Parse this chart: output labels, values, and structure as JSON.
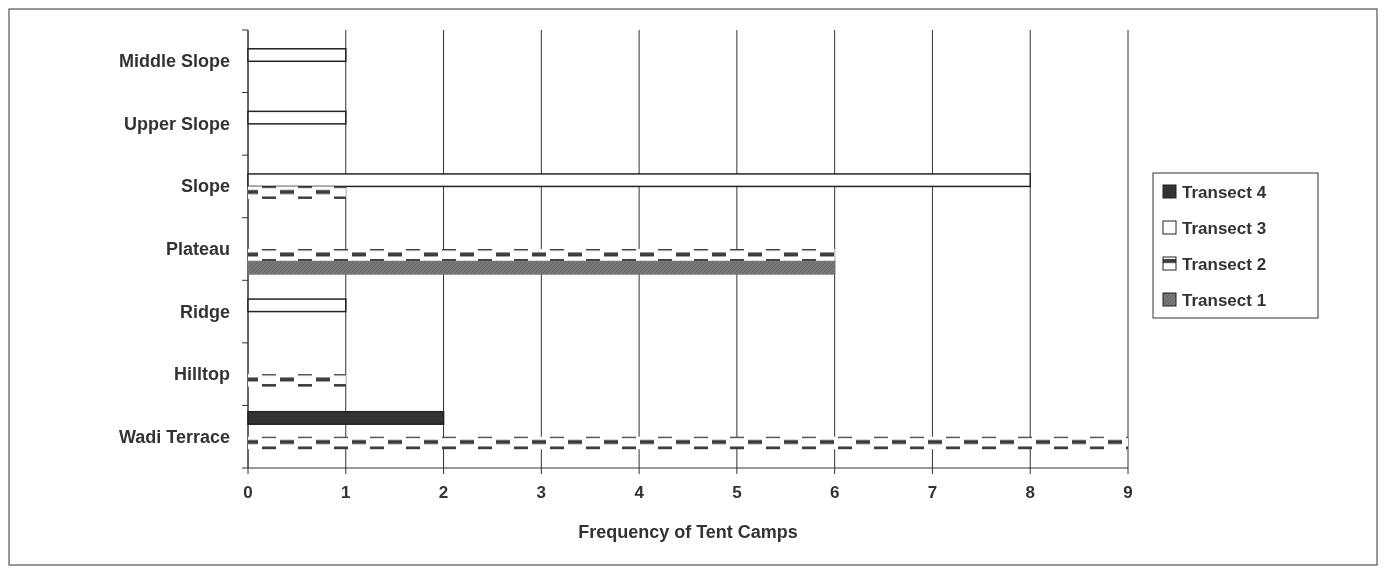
{
  "chart_data": {
    "type": "bar",
    "orientation": "horizontal",
    "xlabel": "Frequency of Tent Camps",
    "categories": [
      "Middle Slope",
      "Upper Slope",
      "Slope",
      "Plateau",
      "Ridge",
      "Hilltop",
      "Wadi Terrace"
    ],
    "series": [
      {
        "name": "Transect 4",
        "color": "#333333",
        "values": [
          null,
          null,
          null,
          null,
          null,
          null,
          2
        ]
      },
      {
        "name": "Transect 3",
        "color": "#ffffff",
        "values": [
          1,
          1,
          8,
          null,
          1,
          null,
          null
        ]
      },
      {
        "name": "Transect 2",
        "color": "#3c3c3c",
        "values": [
          null,
          null,
          1,
          6,
          null,
          1,
          9
        ]
      },
      {
        "name": "Transect 1",
        "color": "#777777",
        "values": [
          null,
          null,
          null,
          6,
          null,
          null,
          null
        ]
      }
    ],
    "xlim": [
      0,
      9
    ],
    "xticks": [
      0,
      1,
      2,
      3,
      4,
      5,
      6,
      7,
      8,
      9
    ],
    "grid": "x",
    "legend": "right"
  }
}
